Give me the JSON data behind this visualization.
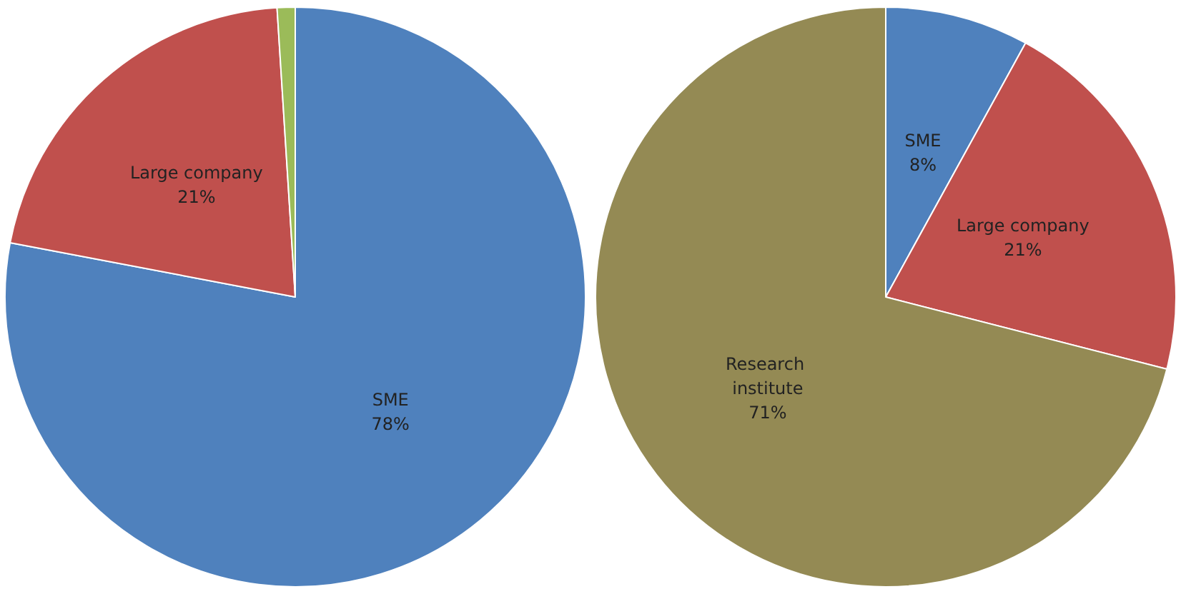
{
  "chart_data": [
    {
      "type": "pie",
      "categories": [
        "SME",
        "Large company",
        null
      ],
      "values": [
        78,
        21,
        1
      ],
      "colors": [
        "#4f81bd",
        "#c0504d",
        "#9bbb59"
      ],
      "value_labels": [
        "78%",
        "21%",
        null
      ]
    },
    {
      "type": "pie",
      "categories": [
        "SME",
        "Large company",
        "Research institute"
      ],
      "values": [
        8,
        21,
        71
      ],
      "colors": [
        "#4f81bd",
        "#c0504d",
        "#948a54"
      ],
      "value_labels": [
        "8%",
        "21%",
        "71%"
      ]
    }
  ]
}
